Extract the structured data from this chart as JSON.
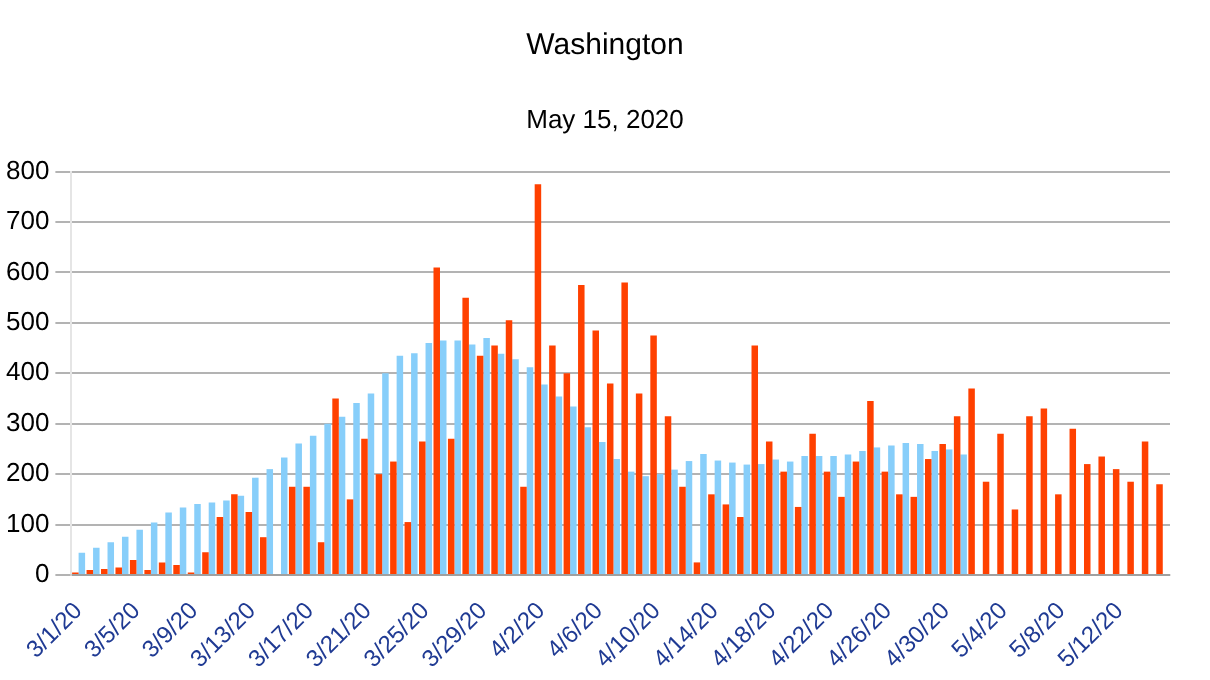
{
  "chart_data": {
    "type": "bar",
    "title": "Washington",
    "subtitle": "May 15, 2020",
    "categories": [
      "3/1/20",
      null,
      null,
      null,
      "3/5/20",
      null,
      null,
      null,
      "3/9/20",
      null,
      null,
      null,
      "3/13/20",
      null,
      null,
      null,
      "3/17/20",
      null,
      null,
      null,
      "3/21/20",
      null,
      null,
      null,
      "3/25/20",
      null,
      null,
      null,
      "3/29/20",
      null,
      null,
      null,
      "4/2/20",
      null,
      null,
      null,
      "4/6/20",
      null,
      null,
      null,
      "4/10/20",
      null,
      null,
      null,
      "4/14/20",
      null,
      null,
      null,
      "4/18/20",
      null,
      null,
      null,
      "4/22/20",
      null,
      null,
      null,
      "4/26/20",
      null,
      null,
      null,
      "4/30/20",
      null,
      null,
      null,
      "5/4/20",
      null,
      null,
      null,
      "5/8/20",
      null,
      null,
      null,
      "5/12/20",
      null,
      null,
      null
    ],
    "series": [
      {
        "color": "#ff4000",
        "values": [
          5,
          10,
          12,
          15,
          30,
          10,
          25,
          20,
          5,
          45,
          115,
          160,
          125,
          75,
          null,
          175,
          175,
          65,
          350,
          150,
          270,
          200,
          225,
          105,
          265,
          610,
          270,
          550,
          435,
          455,
          505,
          175,
          775,
          455,
          400,
          575,
          485,
          380,
          580,
          360,
          475,
          315,
          175,
          25,
          160,
          140,
          115,
          455,
          265,
          205,
          135,
          280,
          205,
          155,
          225,
          345,
          205,
          160,
          155,
          230,
          260,
          315,
          370,
          185,
          280,
          130,
          315,
          330,
          160,
          290,
          220,
          235,
          210,
          185,
          265,
          180
        ]
      },
      {
        "color": "#87cefa",
        "values": [
          44,
          54,
          65,
          76,
          90,
          104,
          124,
          134,
          141,
          144,
          148,
          157,
          193,
          210,
          233,
          261,
          276,
          300,
          314,
          341,
          360,
          400,
          435,
          440,
          460,
          465,
          465,
          457,
          470,
          439,
          428,
          412,
          378,
          354,
          334,
          293,
          264,
          230,
          205,
          196,
          200,
          209,
          226,
          240,
          227,
          223,
          219,
          220,
          229,
          225,
          236,
          236,
          236,
          239,
          246,
          253,
          257,
          262,
          260,
          246,
          249,
          239,
          null,
          null,
          null,
          null,
          null,
          null,
          null,
          null,
          null,
          null,
          null,
          null,
          null,
          null
        ]
      }
    ],
    "ylim": [
      0,
      800
    ],
    "yticks": [
      0,
      100,
      200,
      300,
      400,
      500,
      600,
      700,
      800
    ],
    "grid": "y",
    "legend": false
  }
}
